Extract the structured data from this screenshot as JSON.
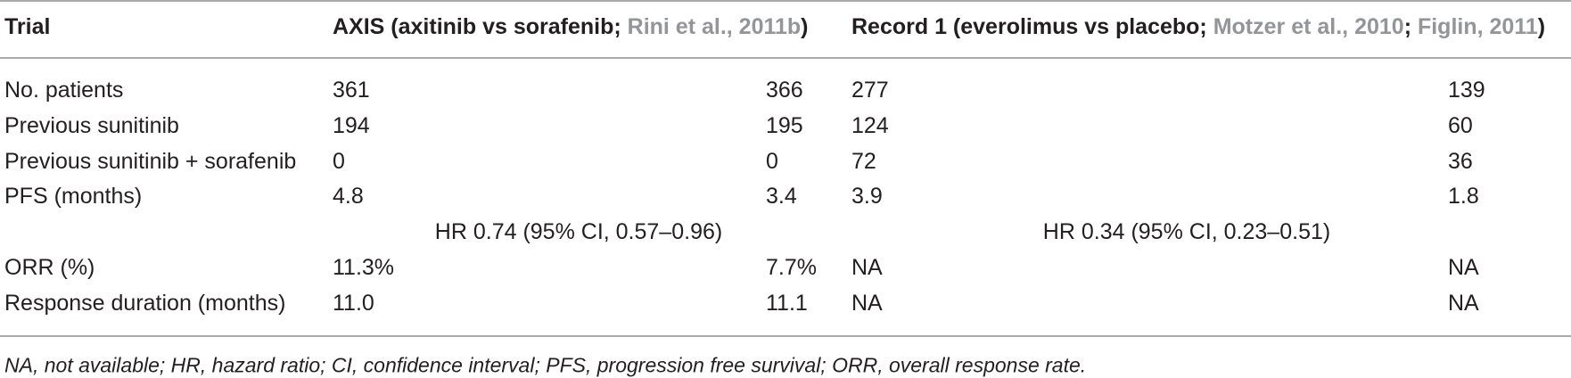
{
  "header": {
    "trial_label": "Trial",
    "axis": {
      "title": "AXIS (axitinib vs sorafenib; ",
      "ref1": "Rini et al., 2011b",
      "close": ")"
    },
    "record": {
      "title": "Record 1 (everolimus vs placebo; ",
      "ref1": "Motzer et al., 2010",
      "sep": "; ",
      "ref2": "Figlin, 2011",
      "close": ")"
    }
  },
  "rows": [
    {
      "label": "No. patients",
      "axis_a": "361",
      "axis_b": "366",
      "rec_a": "277",
      "rec_b": "139"
    },
    {
      "label": "Previous sunitinib",
      "axis_a": "194",
      "axis_b": "195",
      "rec_a": "124",
      "rec_b": "60"
    },
    {
      "label": "Previous sunitinib + sorafenib",
      "axis_a": "0",
      "axis_b": "0",
      "rec_a": "72",
      "rec_b": "36"
    },
    {
      "label": "PFS (months)",
      "axis_a": "4.8",
      "axis_b": "3.4",
      "rec_a": "3.9",
      "rec_b": "1.8"
    },
    {
      "label": "ORR (%)",
      "axis_a": "11.3%",
      "axis_b": "7.7%",
      "rec_a": "NA",
      "rec_b": "NA"
    },
    {
      "label": "Response duration (months)",
      "axis_a": "11.0",
      "axis_b": "11.1",
      "rec_a": "NA",
      "rec_b": "NA"
    }
  ],
  "hazard": {
    "axis": "HR 0.74 (95% CI, 0.57–0.96)",
    "record": "HR 0.34 (95% CI, 0.23–0.51)"
  },
  "footnote": "NA, not available; HR, hazard ratio; CI, confidence interval; PFS, progression free survival; ORR, overall response rate."
}
